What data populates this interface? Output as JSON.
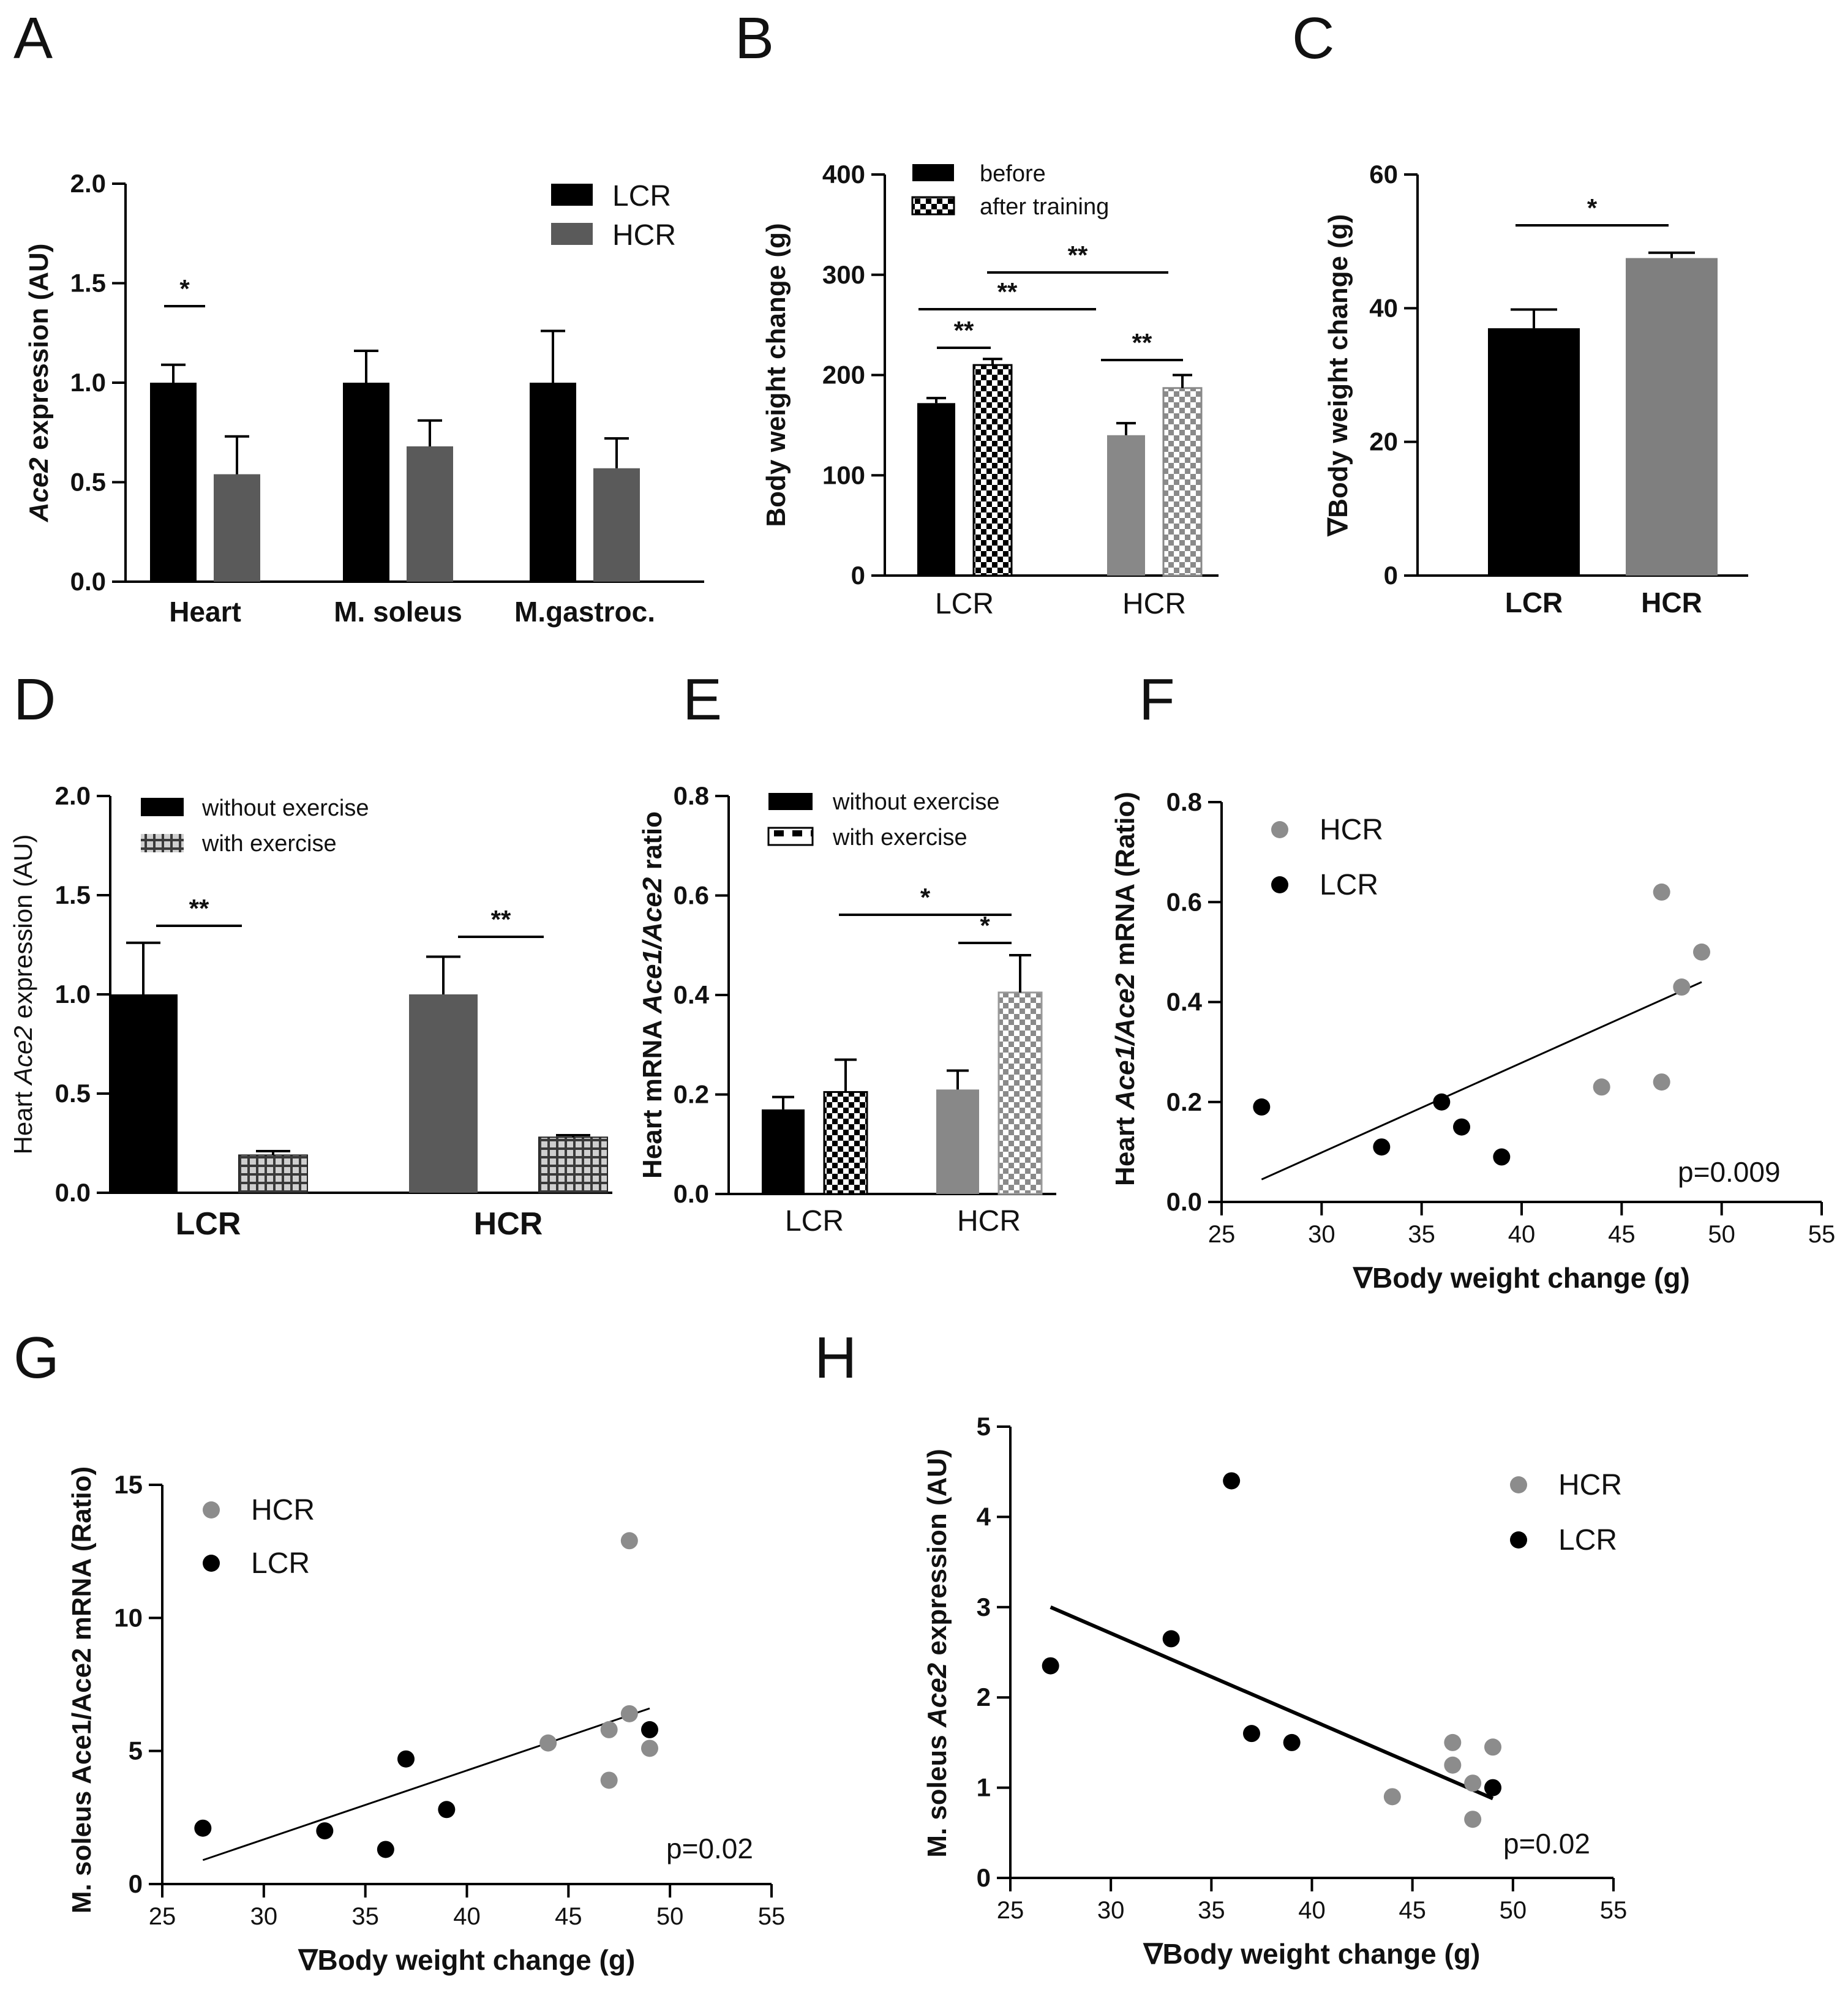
{
  "colors": {
    "black": "#000000",
    "dark_gray": "#5a5a5a",
    "gray": "#7f7f7f",
    "mid_gray": "#888888",
    "hcr_point": "#8c8c8c",
    "lcr_point": "#000000"
  },
  "chart_data": [
    {
      "panel": "A",
      "type": "bar",
      "ylabel": "Ace2 expression (AU)",
      "ylabel_italic": "Ace2",
      "ylabel_rest": " expression (AU)",
      "ylim": [
        0,
        2.0
      ],
      "yticks": [
        0.0,
        0.5,
        1.0,
        1.5,
        2.0
      ],
      "ytick_labels": [
        "0.0",
        "0.5",
        "1.0",
        "1.5",
        "2.0"
      ],
      "categories": [
        "Heart",
        "M. soleus",
        "M.gastroc."
      ],
      "series": [
        {
          "name": "LCR",
          "values": [
            1.0,
            1.0,
            1.0
          ],
          "errors": [
            0.09,
            0.16,
            0.26
          ]
        },
        {
          "name": "HCR",
          "values": [
            0.54,
            0.68,
            0.57
          ],
          "errors": [
            0.19,
            0.13,
            0.15
          ]
        }
      ],
      "annotations": [
        {
          "text": "*",
          "between": "Heart LCR vs HCR"
        }
      ]
    },
    {
      "panel": "B",
      "type": "bar",
      "ylabel": "Body weight change (g)",
      "ylim": [
        0,
        400
      ],
      "yticks": [
        0,
        100,
        200,
        300,
        400
      ],
      "ytick_labels": [
        "0",
        "100",
        "200",
        "300",
        "400"
      ],
      "categories": [
        "LCR",
        "HCR"
      ],
      "series": [
        {
          "name": "before",
          "values": [
            172,
            140
          ],
          "errors": [
            5,
            12
          ]
        },
        {
          "name": "after training",
          "values": [
            210,
            187
          ],
          "errors": [
            6,
            13
          ]
        }
      ],
      "annotations": [
        {
          "text": "**",
          "between": "LCR before vs after"
        },
        {
          "text": "**",
          "between": "HCR before vs after"
        },
        {
          "text": "**",
          "between": "LCR before vs HCR before"
        },
        {
          "text": "**",
          "between": "LCR after vs HCR after"
        }
      ]
    },
    {
      "panel": "C",
      "type": "bar",
      "ylabel": "∇Body weight change (g)",
      "ylim": [
        0,
        60
      ],
      "yticks": [
        0,
        20,
        40,
        60
      ],
      "ytick_labels": [
        "0",
        "20",
        "40",
        "60"
      ],
      "categories": [
        "LCR",
        "HCR"
      ],
      "values": [
        37,
        47.5
      ],
      "errors": [
        2.8,
        0.8
      ],
      "annotations": [
        {
          "text": "*",
          "between": "LCR vs HCR"
        }
      ]
    },
    {
      "panel": "D",
      "type": "bar",
      "ylabel": "Heart Ace2 expression (AU)",
      "ylabel_pre": "Heart ",
      "ylabel_italic": "Ace2",
      "ylabel_rest": " expression (AU)",
      "ylim": [
        0,
        2.0
      ],
      "yticks": [
        0.0,
        0.5,
        1.0,
        1.5,
        2.0
      ],
      "ytick_labels": [
        "0.0",
        "0.5",
        "1.0",
        "1.5",
        "2.0"
      ],
      "categories": [
        "LCR",
        "HCR"
      ],
      "series": [
        {
          "name": "without exercise",
          "values": [
            1.0,
            1.0
          ],
          "errors": [
            0.26,
            0.19
          ]
        },
        {
          "name": "with exercise",
          "values": [
            0.19,
            0.28
          ],
          "errors": [
            0.02,
            0.01
          ]
        }
      ],
      "annotations": [
        {
          "text": "**",
          "between": "LCR without vs with"
        },
        {
          "text": "**",
          "between": "HCR without vs with"
        }
      ]
    },
    {
      "panel": "E",
      "type": "bar",
      "ylabel": "Heart mRNA Ace1/Ace2 ratio",
      "ylabel_pre": "Heart mRNA ",
      "ylabel_italic": "Ace1/Ace2",
      "ylabel_rest": " ratio",
      "ylim": [
        0,
        0.8
      ],
      "yticks": [
        0.0,
        0.2,
        0.4,
        0.6,
        0.8
      ],
      "ytick_labels": [
        "0.0",
        "0.2",
        "0.4",
        "0.6",
        "0.8"
      ],
      "categories": [
        "LCR",
        "HCR"
      ],
      "series": [
        {
          "name": "without exercise",
          "values": [
            0.17,
            0.21
          ],
          "errors": [
            0.025,
            0.038
          ]
        },
        {
          "name": "with exercise",
          "values": [
            0.205,
            0.405
          ],
          "errors": [
            0.065,
            0.075
          ]
        }
      ],
      "annotations": [
        {
          "text": "*",
          "between": "LCR with vs HCR with"
        },
        {
          "text": "*",
          "between": "HCR without vs with"
        }
      ]
    },
    {
      "panel": "F",
      "type": "scatter",
      "ylabel": "Heart Ace1/Ace2 mRNA (Ratio)",
      "ylabel_pre": "Heart ",
      "ylabel_italic": "Ace1/Ace2",
      "ylabel_rest": " mRNA (Ratio)",
      "xlabel": "∇Body weight change (g)",
      "xlim": [
        25,
        55
      ],
      "ylim": [
        0,
        0.8
      ],
      "xticks": [
        25,
        30,
        35,
        40,
        45,
        50,
        55
      ],
      "xtick_labels": [
        "25",
        "30",
        "35",
        "40",
        "45",
        "50",
        "55"
      ],
      "yticks": [
        0.0,
        0.2,
        0.4,
        0.6,
        0.8
      ],
      "ytick_labels": [
        "0.0",
        "0.2",
        "0.4",
        "0.6",
        "0.8"
      ],
      "series": [
        {
          "name": "HCR",
          "x": [
            44,
            47,
            47,
            48,
            49
          ],
          "y": [
            0.23,
            0.24,
            0.62,
            0.43,
            0.5
          ]
        },
        {
          "name": "LCR",
          "x": [
            27,
            33,
            36,
            37,
            39
          ],
          "y": [
            0.19,
            0.11,
            0.2,
            0.15,
            0.09
          ]
        }
      ],
      "fit": {
        "x": [
          27,
          49
        ],
        "y": [
          0.045,
          0.44
        ]
      },
      "pvalue": "p=0.009"
    },
    {
      "panel": "G",
      "type": "scatter",
      "ylabel": "M. soleus Ace1/Ace2 mRNA (Ratio)",
      "xlabel": "∇Body weight change (g)",
      "xlim": [
        25,
        55
      ],
      "ylim": [
        0,
        15
      ],
      "xticks": [
        25,
        30,
        35,
        40,
        45,
        50,
        55
      ],
      "xtick_labels": [
        "25",
        "30",
        "35",
        "40",
        "45",
        "50",
        "55"
      ],
      "yticks": [
        0,
        5,
        10,
        15
      ],
      "ytick_labels": [
        "0",
        "5",
        "10",
        "15"
      ],
      "series": [
        {
          "name": "HCR",
          "x": [
            44,
            47,
            47,
            48,
            48,
            49
          ],
          "y": [
            5.3,
            5.8,
            3.9,
            6.4,
            12.9,
            5.1
          ]
        },
        {
          "name": "LCR",
          "x": [
            27,
            33,
            36,
            37,
            39,
            49
          ],
          "y": [
            2.1,
            2.0,
            1.3,
            4.7,
            2.8,
            5.8
          ]
        }
      ],
      "fit": {
        "x": [
          27,
          49
        ],
        "y": [
          0.9,
          6.6
        ]
      },
      "pvalue": "p=0.02"
    },
    {
      "panel": "H",
      "type": "scatter",
      "ylabel": "M. soleus Ace2 expression (AU)",
      "ylabel_pre": "M. soleus ",
      "ylabel_italic": "Ace2",
      "ylabel_rest": " expression (AU)",
      "xlabel": "∇Body weight change (g)",
      "xlim": [
        25,
        55
      ],
      "ylim": [
        0,
        5
      ],
      "xticks": [
        25,
        30,
        35,
        40,
        45,
        50,
        55
      ],
      "xtick_labels": [
        "25",
        "30",
        "35",
        "40",
        "45",
        "50",
        "55"
      ],
      "yticks": [
        0,
        1,
        2,
        3,
        4,
        5
      ],
      "ytick_labels": [
        "0",
        "1",
        "2",
        "3",
        "4",
        "5"
      ],
      "series": [
        {
          "name": "HCR",
          "x": [
            44,
            47,
            47,
            48,
            48,
            49
          ],
          "y": [
            0.9,
            1.5,
            1.25,
            1.05,
            0.65,
            1.45
          ]
        },
        {
          "name": "LCR",
          "x": [
            27,
            33,
            36,
            37,
            39,
            49
          ],
          "y": [
            2.35,
            2.65,
            4.4,
            1.6,
            1.5,
            1.0
          ]
        }
      ],
      "fit": {
        "x": [
          27,
          49
        ],
        "y": [
          3.0,
          0.88
        ]
      },
      "pvalue": "p=0.02"
    }
  ]
}
